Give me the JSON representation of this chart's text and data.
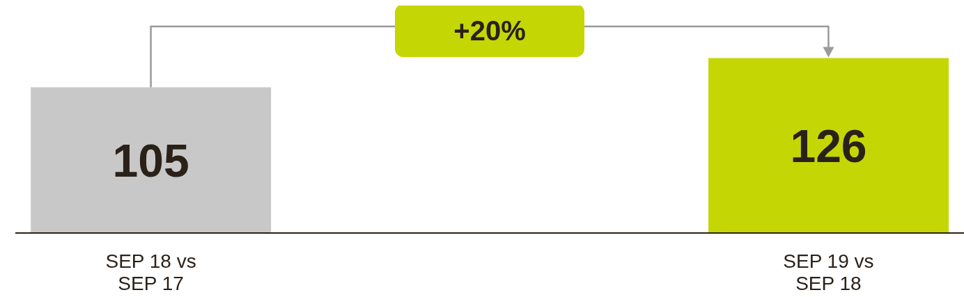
{
  "chart_data": {
    "type": "bar",
    "categories": [
      "SEP 18 vs SEP 17",
      "SEP 19 vs SEP 18"
    ],
    "values": [
      105,
      126
    ],
    "colors": [
      "#c8c8c8",
      "#c5d605"
    ],
    "data_labels": true,
    "annotations": [
      "+20%"
    ]
  }
}
